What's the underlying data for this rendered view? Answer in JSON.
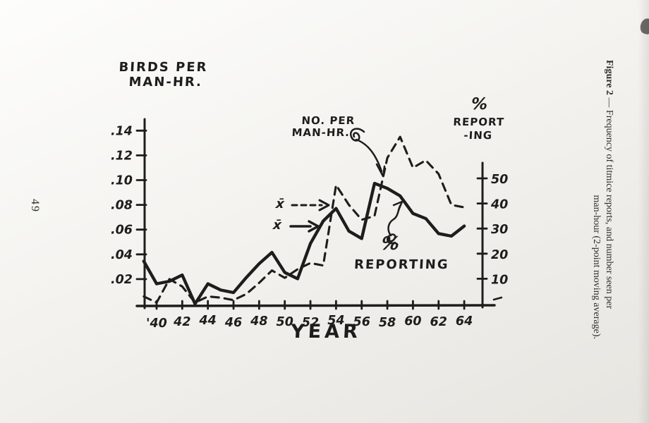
{
  "page": {
    "number": "49",
    "ink": "#1d1d1b",
    "paper": "#f1efeb"
  },
  "caption": {
    "figure_label": "Figure 2 ",
    "line1_rest": "— Frequency of titmice reports, and number seen per",
    "line2": "man-hour (2-point moving average)."
  },
  "chart_data": {
    "type": "line",
    "title": "",
    "left_axis": {
      "title_line1": "BIRDS PER",
      "title_line2": "MAN-HR.",
      "tick_labels": [
        ".14",
        ".12",
        ".10",
        ".08",
        ".06",
        ".04",
        ".02"
      ],
      "tick_values": [
        0.14,
        0.12,
        0.1,
        0.08,
        0.06,
        0.04,
        0.02
      ],
      "range": [
        0,
        0.15
      ]
    },
    "right_axis": {
      "title_line1": "%",
      "title_line2": "REPORT",
      "title_line3": "-ING",
      "tick_labels": [
        "50",
        "40",
        "30",
        "20",
        "10"
      ],
      "tick_values": [
        50,
        40,
        30,
        20,
        10
      ],
      "range": [
        0,
        55
      ]
    },
    "x_axis": {
      "title": "YEAR",
      "tick_labels": [
        "'40",
        "42",
        "44",
        "46",
        "48",
        "50",
        "52",
        "54",
        "56",
        "58",
        "60",
        "62",
        "64"
      ],
      "tick_years": [
        1940,
        1942,
        1944,
        1946,
        1948,
        1950,
        1952,
        1954,
        1956,
        1958,
        1960,
        1962,
        1964
      ]
    },
    "years": [
      1939,
      1940,
      1941,
      1942,
      1943,
      1944,
      1945,
      1946,
      1947,
      1948,
      1949,
      1950,
      1951,
      1952,
      1953,
      1954,
      1955,
      1956,
      1957,
      1958,
      1959,
      1960,
      1961,
      1962,
      1963,
      1964
    ],
    "series": [
      {
        "name": "NO. PER MAN-HR.",
        "style": "dashed",
        "axis": "left",
        "values": [
          0.006,
          0.001,
          0.02,
          0.014,
          0.001,
          0.006,
          0.005,
          0.003,
          0.008,
          0.017,
          0.027,
          0.021,
          0.028,
          0.033,
          0.031,
          0.096,
          0.08,
          0.068,
          0.071,
          0.118,
          0.135,
          0.11,
          0.116,
          0.105,
          0.08,
          0.078
        ]
      },
      {
        "name": "% REPORTING",
        "style": "solid",
        "axis": "right",
        "values": [
          17,
          8,
          9,
          11.5,
          0,
          8,
          5.5,
          4.5,
          10.5,
          16,
          20.5,
          12.5,
          10,
          24,
          33,
          38,
          29,
          26,
          48,
          46,
          43,
          36,
          34,
          28,
          27,
          31
        ]
      }
    ],
    "annotations": {
      "series1_label_line1": "NO. PER",
      "series1_label_line2": "MAN-HR.",
      "series2_label_symbol": "%",
      "series2_label_text": "REPORTING",
      "mean_symbol": "x̄"
    },
    "legend_position": "annotated-inline",
    "grid": false
  }
}
